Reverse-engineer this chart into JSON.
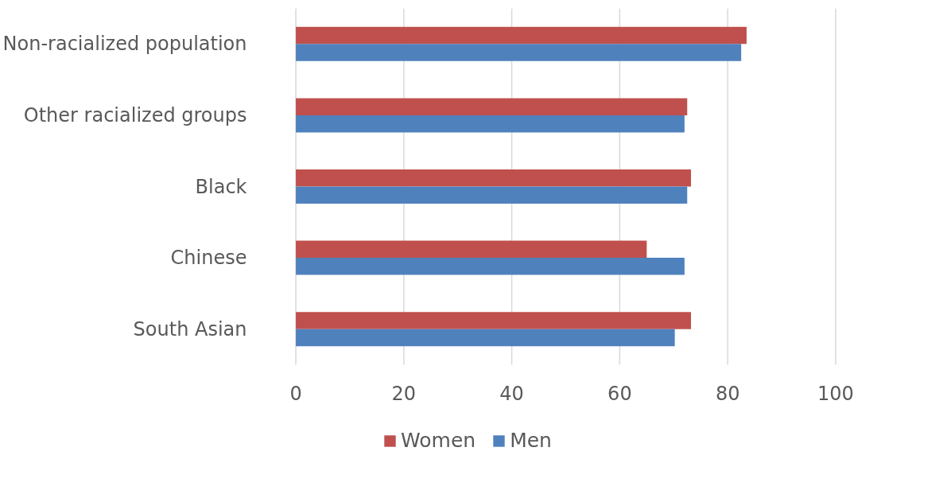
{
  "chart_data": {
    "type": "bar",
    "orientation": "horizontal",
    "categories": [
      "Non-racialized population",
      "Other racialized groups",
      "Black",
      "Chinese",
      "South Asian"
    ],
    "series": [
      {
        "name": "Women",
        "color": "#c0504d",
        "values": [
          83.5,
          72.5,
          73.2,
          65,
          73.2
        ]
      },
      {
        "name": "Men",
        "color": "#4f81bd",
        "values": [
          82.5,
          72,
          72.5,
          72,
          70.2
        ]
      }
    ],
    "xlim": [
      0,
      100
    ],
    "xticks": [
      0,
      20,
      40,
      60,
      80,
      100
    ],
    "grid": "x",
    "legend": "bottom"
  }
}
